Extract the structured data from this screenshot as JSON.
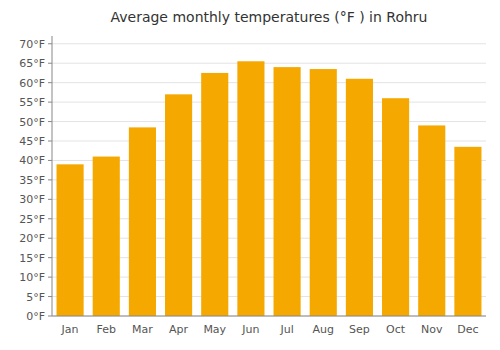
{
  "chart_data": {
    "type": "bar",
    "title": "Average monthly temperatures (°F ) in Rohru",
    "categories": [
      "Jan",
      "Feb",
      "Mar",
      "Apr",
      "May",
      "Jun",
      "Jul",
      "Aug",
      "Sep",
      "Oct",
      "Nov",
      "Dec"
    ],
    "values": [
      39,
      41,
      48.5,
      57,
      62.5,
      65.5,
      64,
      63.5,
      61,
      56,
      49,
      43.5
    ],
    "color": "#F5A800",
    "ylim": [
      0,
      72
    ],
    "yticks": [
      {
        "value": 0,
        "label": "0°F"
      },
      {
        "value": 5,
        "label": "5°F"
      },
      {
        "value": 10,
        "label": "10°F"
      },
      {
        "value": 15,
        "label": "15°F"
      },
      {
        "value": 20,
        "label": "20°F"
      },
      {
        "value": 25,
        "label": "25°F"
      },
      {
        "value": 30,
        "label": "30°F"
      },
      {
        "value": 35,
        "label": "35°F"
      },
      {
        "value": 40,
        "label": "40°F"
      },
      {
        "value": 45,
        "label": "45°F"
      },
      {
        "value": 50,
        "label": "50°F"
      },
      {
        "value": 55,
        "label": "55°F"
      },
      {
        "value": 60,
        "label": "60°F"
      },
      {
        "value": 65,
        "label": "65°F"
      },
      {
        "value": 70,
        "label": "70°F"
      }
    ],
    "grid": true
  }
}
